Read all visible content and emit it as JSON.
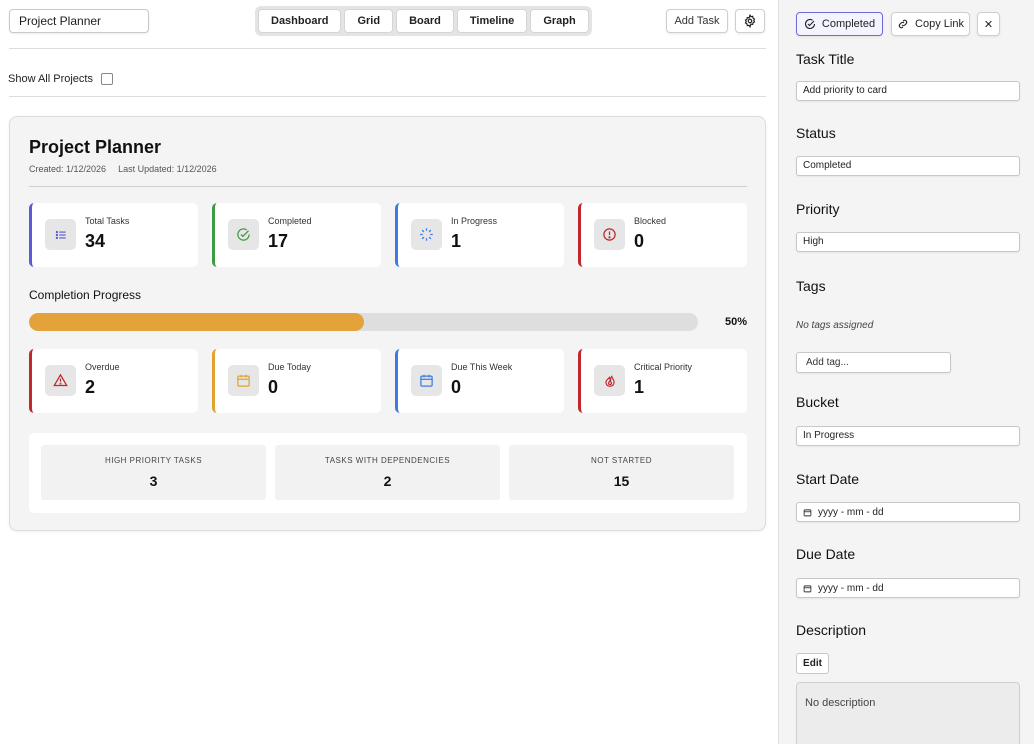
{
  "header": {
    "project_name": "Project Planner",
    "tabs": [
      "Dashboard",
      "Grid",
      "Board",
      "Timeline",
      "Graph"
    ],
    "add_task_label": "Add Task",
    "settings_icon": "gear-icon"
  },
  "filter": {
    "show_all_label": "Show All Projects",
    "show_all_checked": false
  },
  "dashboard": {
    "title": "Project Planner",
    "created": "Created: 1/12/2026",
    "updated": "Last Updated: 1/12/2026",
    "stats_row1": [
      {
        "label": "Total Tasks",
        "value": "34",
        "icon": "list-icon",
        "color": "#5b5bd6"
      },
      {
        "label": "Completed",
        "value": "17",
        "icon": "check-circle-icon",
        "color": "#3f9a44"
      },
      {
        "label": "In Progress",
        "value": "1",
        "icon": "spinner-icon",
        "color": "#3f7ae0"
      },
      {
        "label": "Blocked",
        "value": "0",
        "icon": "alert-circle-icon",
        "color": "#c0282c"
      }
    ],
    "progress": {
      "label": "Completion Progress",
      "percent": 50,
      "percent_label": "50%",
      "color": "#e4a33a"
    },
    "stats_row2": [
      {
        "label": "Overdue",
        "value": "2",
        "icon": "warning-triangle-icon",
        "color": "#c0282c"
      },
      {
        "label": "Due Today",
        "value": "0",
        "icon": "calendar-icon",
        "color": "#e0a32e"
      },
      {
        "label": "Due This Week",
        "value": "0",
        "icon": "calendar-grid-icon",
        "color": "#3f7ae0"
      },
      {
        "label": "Critical Priority",
        "value": "1",
        "icon": "flame-icon",
        "color": "#c0282c"
      }
    ],
    "summary": [
      {
        "label": "HIGH PRIORITY TASKS",
        "value": "3"
      },
      {
        "label": "TASKS WITH DEPENDENCIES",
        "value": "2"
      },
      {
        "label": "NOT STARTED",
        "value": "15"
      }
    ]
  },
  "panel": {
    "completed_label": "Completed",
    "copy_link_label": "Copy Link",
    "close_symbol": "✕",
    "task_title_heading": "Task Title",
    "task_title_value": "Add priority to card",
    "status_heading": "Status",
    "status_value": "Completed",
    "priority_heading": "Priority",
    "priority_value": "High",
    "tags_heading": "Tags",
    "tags_empty": "No tags assigned",
    "add_tag_placeholder": "Add tag...",
    "bucket_heading": "Bucket",
    "bucket_value": "In Progress",
    "start_date_heading": "Start Date",
    "start_date_placeholder": "yyyy - mm - dd",
    "due_date_heading": "Due Date",
    "due_date_placeholder": "yyyy - mm - dd",
    "description_heading": "Description",
    "edit_label": "Edit",
    "description_value": "No description"
  }
}
